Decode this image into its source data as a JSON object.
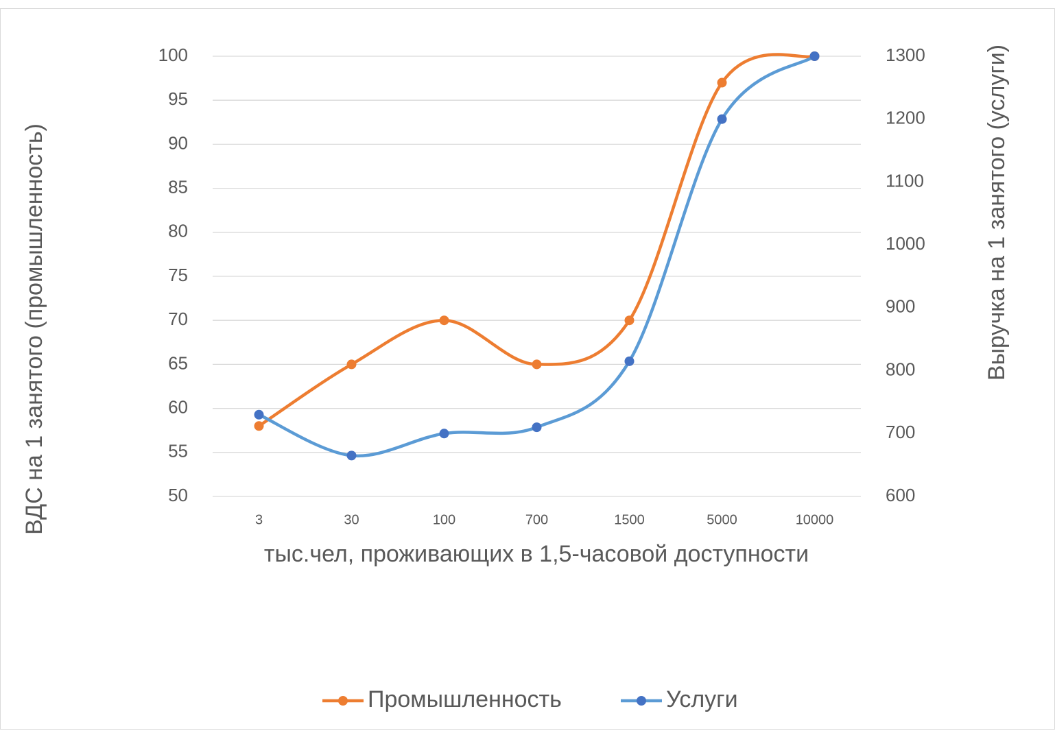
{
  "chart_data": {
    "type": "line",
    "categories": [
      "3",
      "30",
      "100",
      "700",
      "1500",
      "5000",
      "10000"
    ],
    "xlabel": "тыс.чел, проживающих в 1,5-часовой доступности",
    "ylabel": "ВДС на 1 занятого (промышленность)",
    "y2label": "Выручка на 1 занятого (услуги)",
    "ylim": [
      50,
      100
    ],
    "yticks": [
      50,
      55,
      60,
      65,
      70,
      75,
      80,
      85,
      90,
      95,
      100
    ],
    "y2lim": [
      600,
      1300
    ],
    "y2ticks": [
      600,
      700,
      800,
      900,
      1000,
      1100,
      1200,
      1300
    ],
    "grid": true,
    "smooth": true,
    "legend": "bottom",
    "series": [
      {
        "name": "Промышленность",
        "color": "#ed7d31",
        "marker_color": "#ed7d31",
        "values": [
          58,
          65,
          70,
          65,
          70,
          97,
          100
        ]
      },
      {
        "name": "Услуги",
        "color": "#5b9bd5",
        "marker_color": "#4472c4",
        "axis": "y2",
        "values": [
          730,
          665,
          700,
          710,
          815,
          1200,
          1300
        ]
      }
    ]
  }
}
